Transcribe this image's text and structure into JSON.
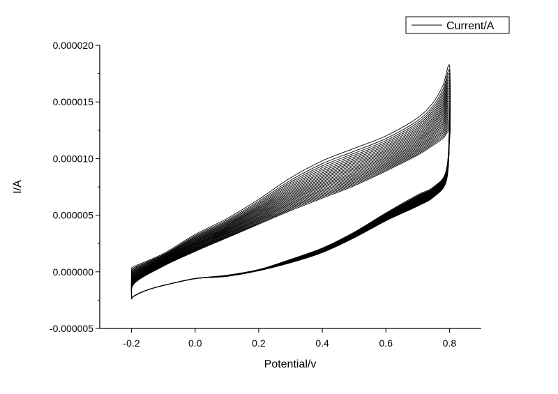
{
  "chart_data": {
    "type": "line",
    "xlabel": "Potential/v",
    "ylabel": "I/A",
    "xlim": [
      -0.3,
      0.9
    ],
    "ylim": [
      -5e-06,
      2e-05
    ],
    "x_ticks": [
      -0.2,
      0.0,
      0.2,
      0.4,
      0.6,
      0.8
    ],
    "x_tick_labels": [
      "-0.2",
      "0.0",
      "0.2",
      "0.4",
      "0.6",
      "0.8"
    ],
    "y_ticks": [
      -5e-06,
      0.0,
      5e-06,
      1e-05,
      1.5e-05,
      2e-05
    ],
    "y_tick_labels": [
      "-0.000005",
      "0.000000",
      "0.000005",
      "0.000010",
      "0.000015",
      "0.000020"
    ],
    "grid": false,
    "legend": {
      "position": "top-right",
      "entries": [
        "Current/A"
      ]
    },
    "series_color": "#000000",
    "cycles": 26,
    "series": [
      {
        "name": "Current/A",
        "note_cycle": "first (outermost) cycle",
        "anodic": {
          "x": [
            -0.2,
            -0.19,
            -0.1,
            0.0,
            0.1,
            0.2,
            0.3,
            0.4,
            0.5,
            0.6,
            0.7,
            0.75,
            0.78,
            0.8
          ],
          "y": [
            2.5e-07,
            5e-07,
            1.6e-06,
            3.3e-06,
            4.7e-06,
            6.4e-06,
            8.3e-06,
            9.8e-06,
            1.09e-05,
            1.2e-05,
            1.36e-05,
            1.5e-05,
            1.65e-05,
            1.82e-05
          ]
        },
        "cathodic": {
          "x": [
            0.8,
            0.79,
            0.75,
            0.7,
            0.6,
            0.5,
            0.4,
            0.3,
            0.2,
            0.1,
            0.0,
            -0.1,
            -0.15,
            -0.19,
            -0.2
          ],
          "y": [
            1.35e-05,
            9e-06,
            7.5e-06,
            6.8e-06,
            5.2e-06,
            3.5e-06,
            2.1e-06,
            1.1e-06,
            2e-07,
            -3e-07,
            -6e-07,
            -1.2e-06,
            -1.6e-06,
            -2.1e-06,
            -2.4e-06
          ]
        }
      },
      {
        "name": "Current/A",
        "note_cycle": "last (innermost) cycle",
        "anodic": {
          "x": [
            -0.2,
            -0.19,
            -0.1,
            0.0,
            0.1,
            0.2,
            0.3,
            0.4,
            0.5,
            0.6,
            0.7,
            0.75,
            0.78,
            0.8
          ],
          "y": [
            -2.4e-06,
            -1e-06,
            5e-07,
            1.8e-06,
            3e-06,
            4.2e-06,
            5.4e-06,
            6.5e-06,
            7.6e-06,
            8.9e-06,
            1.03e-05,
            1.12e-05,
            1.18e-05,
            1.25e-05
          ]
        },
        "cathodic": {
          "x": [
            0.8,
            0.79,
            0.75,
            0.7,
            0.6,
            0.5,
            0.4,
            0.3,
            0.2,
            0.1,
            0.0,
            -0.1,
            -0.15,
            -0.19,
            -0.2
          ],
          "y": [
            1.15e-05,
            8e-06,
            6.6e-06,
            5.8e-06,
            4.5e-06,
            3e-06,
            1.7e-06,
            8e-07,
            1e-07,
            -4e-07,
            -6e-07,
            -1.2e-06,
            -1.6e-06,
            -2.1e-06,
            -2.4e-06
          ]
        }
      }
    ]
  }
}
